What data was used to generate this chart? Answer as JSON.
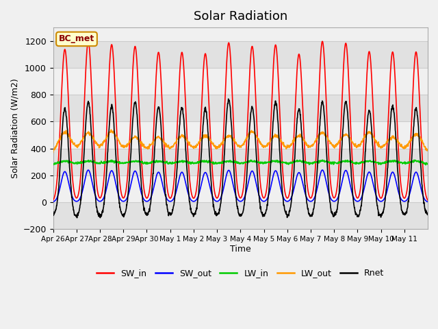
{
  "title": "Solar Radiation",
  "ylabel": "Solar Radiation (W/m2)",
  "xlabel": "Time",
  "ylim": [
    -200,
    1300
  ],
  "yticks": [
    -200,
    0,
    200,
    400,
    600,
    800,
    1000,
    1200
  ],
  "n_days": 16,
  "label": "BC_met",
  "colors": {
    "SW_in": "#ff0000",
    "SW_out": "#0000ff",
    "LW_in": "#00cc00",
    "LW_out": "#ff9900",
    "Rnet": "#000000"
  },
  "legend_labels": [
    "SW_in",
    "SW_out",
    "LW_in",
    "LW_out",
    "Rnet"
  ],
  "xtick_labels": [
    "Apr 26",
    "Apr 27",
    "Apr 28",
    "Apr 29",
    "Apr 30",
    "May 1",
    "May 2",
    "May 3",
    "May 4",
    "May 5",
    "May 6",
    "May 7",
    "May 8",
    "May 9",
    "May 10",
    "May 11"
  ],
  "xtick_positions": [
    0,
    1,
    2,
    3,
    4,
    5,
    6,
    7,
    8,
    9,
    10,
    11,
    12,
    13,
    14,
    15
  ],
  "bg_color": "#f0f0f0",
  "grid_color": "#cccccc"
}
